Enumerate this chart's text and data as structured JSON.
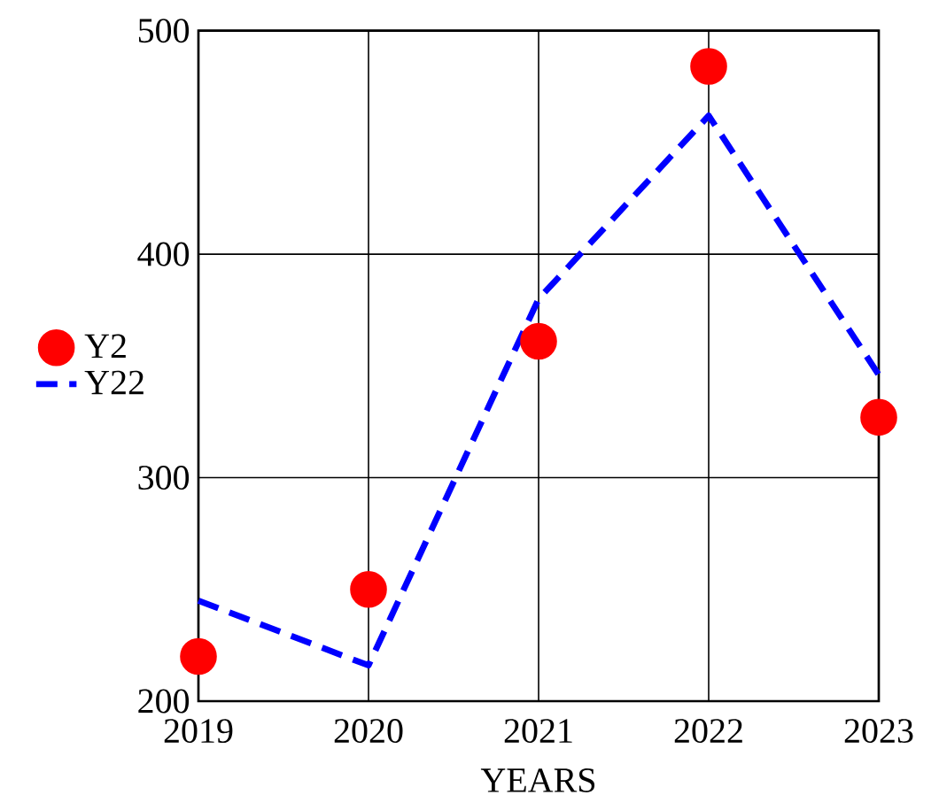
{
  "chart_data": {
    "type": "line",
    "xlabel": "YEARS",
    "x": [
      2019,
      2020,
      2021,
      2022,
      2023
    ],
    "series": [
      {
        "name": "Y2",
        "type": "scatter",
        "color": "#ff0000",
        "marker": "circle",
        "values": [
          220,
          250,
          361,
          484,
          327
        ]
      },
      {
        "name": "Y22",
        "color": "#0000ff",
        "marker": "none",
        "line_style": "dashed",
        "values": [
          245,
          216,
          380,
          462,
          346
        ]
      }
    ],
    "xlim": [
      2019,
      2023
    ],
    "xticks": [
      2019,
      2020,
      2021,
      2022,
      2023
    ],
    "ylim": [
      200,
      500
    ],
    "yticks": [
      200,
      300,
      400,
      500
    ],
    "grid": true,
    "legend": "left"
  }
}
